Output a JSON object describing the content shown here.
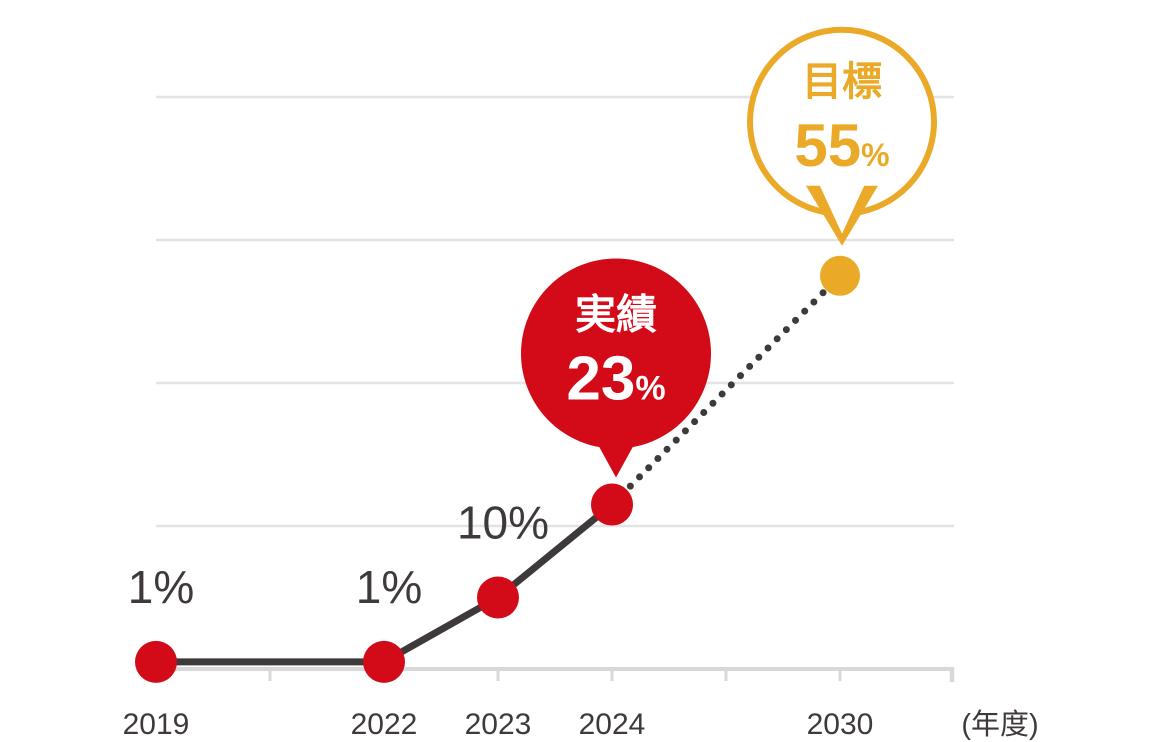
{
  "chart_data": {
    "type": "line",
    "title": "",
    "xlabel": "(年度)",
    "ylabel": "",
    "ylim": [
      0,
      80
    ],
    "grid": true,
    "gridlines_percent": [
      20,
      40,
      60,
      80
    ],
    "legend": false,
    "categories": [
      "2019",
      "2022",
      "2023",
      "2024",
      "2030"
    ],
    "series": [
      {
        "name": "実績",
        "style": "solid",
        "x": [
          "2019",
          "2022",
          "2023",
          "2024"
        ],
        "values": [
          1,
          1,
          10,
          23
        ]
      },
      {
        "name": "目標",
        "style": "dotted",
        "x": [
          "2024",
          "2030"
        ],
        "values": [
          23,
          55
        ]
      }
    ],
    "points": [
      {
        "year": "2019",
        "value": 1,
        "slot": 0,
        "kind": "actual",
        "label": "1%"
      },
      {
        "year": "2022",
        "value": 1,
        "slot": 2,
        "kind": "actual",
        "label": "1%"
      },
      {
        "year": "2023",
        "value": 10,
        "slot": 3,
        "kind": "actual",
        "label": "10%"
      },
      {
        "year": "2024",
        "value": 23,
        "slot": 4,
        "kind": "actual"
      },
      {
        "year": "2030",
        "value": 55,
        "slot": 6,
        "kind": "target"
      }
    ],
    "annotations": [
      {
        "kind": "balloon",
        "anchor_year": "2024",
        "title": "実績",
        "value": "23",
        "unit": "%",
        "style": "filled",
        "color": "#d30a18",
        "text_color": "#ffffff"
      },
      {
        "kind": "balloon",
        "anchor_year": "2030",
        "title": "目標",
        "value": "55",
        "unit": "%",
        "style": "outlined",
        "color": "#eaa927",
        "text_color": "#eaa927"
      }
    ],
    "axis_slots": {
      "2019": 0,
      "2022": 2,
      "2023": 3,
      "2024": 4,
      "2030": 6
    },
    "tick_slots": [
      1,
      2,
      3,
      4,
      5,
      6
    ],
    "end_slot": 7
  },
  "colors": {
    "actual_point": "#d30a18",
    "target_point": "#eaa927",
    "trend_line": "#3e3a39",
    "grid_line": "#e3e3e3",
    "axis_line": "#d8d8d8",
    "label_text": "#3e3a39",
    "background": "#ffffff"
  }
}
